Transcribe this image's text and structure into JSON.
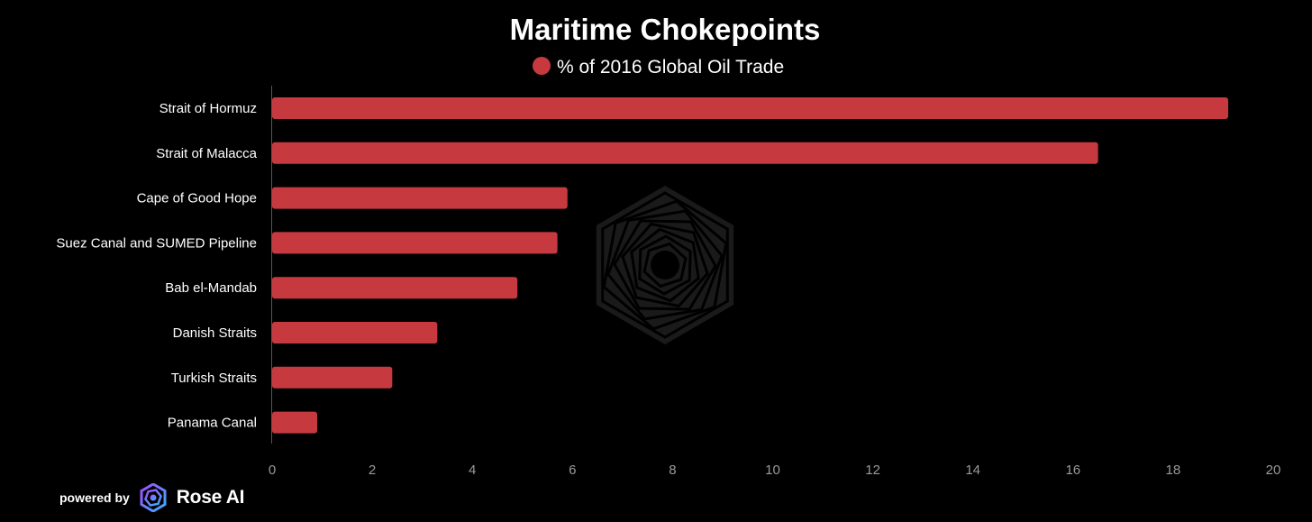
{
  "chart_data": {
    "type": "bar",
    "orientation": "horizontal",
    "title": "Maritime Chokepoints",
    "categories": [
      "Strait of Hormuz",
      "Strait of Malacca",
      "Cape of Good Hope",
      "Suez Canal and SUMED Pipeline",
      "Bab el-Mandab",
      "Danish Straits",
      "Turkish Straits",
      "Panama Canal"
    ],
    "series": [
      {
        "name": "% of 2016 Global Oil Trade",
        "color": "#c63a3f",
        "values": [
          19.1,
          16.5,
          5.9,
          5.7,
          4.9,
          3.3,
          2.4,
          0.9
        ]
      }
    ],
    "xlim": [
      0,
      20
    ],
    "xticks": [
      0,
      2,
      4,
      6,
      8,
      10,
      12,
      14,
      16,
      18,
      20
    ],
    "grid": false,
    "legend_position": "top-center"
  },
  "footer": {
    "powered_by": "powered by",
    "brand": "Rose AI"
  },
  "colors": {
    "background": "#000000",
    "bar": "#c63a3f",
    "axis_text": "#9a9a9a",
    "watermark": "#2a2a2a"
  }
}
